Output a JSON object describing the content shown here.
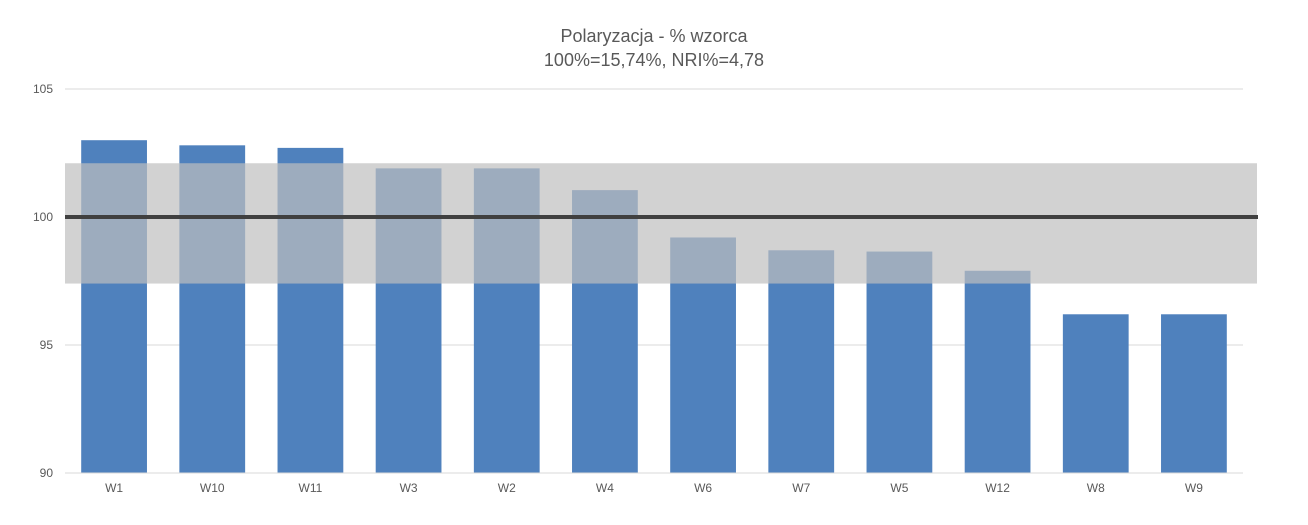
{
  "chart_data": {
    "type": "bar",
    "title": "Polaryzacja - % wzorca",
    "subtitle": "100%=15,74%, NRI%=4,78",
    "categories": [
      "W1",
      "W10",
      "W11",
      "W3",
      "W2",
      "W4",
      "W6",
      "W7",
      "W5",
      "W12",
      "W8",
      "W9"
    ],
    "values": [
      103.0,
      102.8,
      102.7,
      101.9,
      101.9,
      101.05,
      99.2,
      98.7,
      98.65,
      97.9,
      96.2,
      96.2
    ],
    "ylim": [
      90,
      105
    ],
    "yticks": [
      "90",
      "95",
      "100",
      "105"
    ],
    "reference_line": 100,
    "tolerance_band": [
      97.4,
      102.1
    ],
    "xlabel": "",
    "ylabel": "",
    "grid": true,
    "colors": {
      "bar": "#4f81bd",
      "band": "#bfbfbf",
      "reference_line": "#404040",
      "grid": "#d9d9d9",
      "text": "#595959"
    }
  }
}
